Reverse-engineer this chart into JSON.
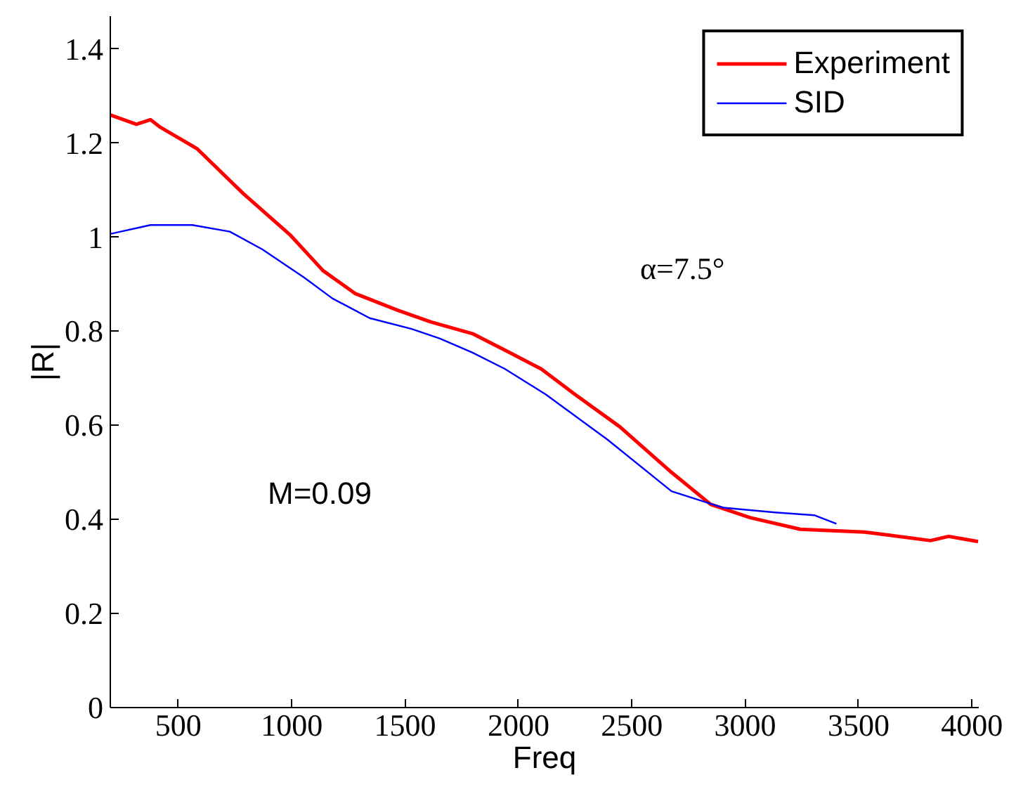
{
  "chart_data": {
    "type": "line",
    "xlabel": "Freq",
    "ylabel": "|R|",
    "xlim": [
      200,
      4030
    ],
    "ylim": [
      0,
      1.47
    ],
    "xticks": [
      500,
      1000,
      1500,
      2000,
      2500,
      3000,
      3500,
      4000
    ],
    "yticks": [
      0,
      0.2,
      0.4,
      0.6,
      0.8,
      1,
      1.2,
      1.4
    ],
    "grid": false,
    "legend": "top right",
    "line_style": "solid",
    "annotations": [
      "α=7.5°",
      "M=0.09"
    ],
    "series": [
      {
        "name": "Experiment",
        "color": "#ff0000",
        "x": [
          200,
          315,
          377,
          417,
          583,
          786,
          995,
          1138,
          1281,
          1466,
          1613,
          1797,
          1940,
          2100,
          2249,
          2447,
          2675,
          2848,
          3021,
          3243,
          3527,
          3644,
          3817,
          3897,
          4027
        ],
        "values": [
          1.26,
          1.24,
          1.25,
          1.235,
          1.188,
          1.093,
          1.004,
          0.929,
          0.88,
          0.845,
          0.82,
          0.795,
          0.76,
          0.72,
          0.666,
          0.597,
          0.5,
          0.432,
          0.404,
          0.379,
          0.373,
          0.366,
          0.355,
          0.364,
          0.353
        ]
      },
      {
        "name": "SID",
        "color": "#0000ff",
        "x": [
          200,
          377,
          562,
          727,
          871,
          1056,
          1179,
          1344,
          1529,
          1652,
          1796,
          1940,
          2120,
          2392,
          2675,
          2903,
          3131,
          3304,
          3402
        ],
        "values": [
          1.007,
          1.026,
          1.026,
          1.012,
          0.974,
          0.914,
          0.87,
          0.828,
          0.805,
          0.785,
          0.755,
          0.72,
          0.666,
          0.57,
          0.46,
          0.425,
          0.415,
          0.409,
          0.391
        ]
      }
    ]
  }
}
